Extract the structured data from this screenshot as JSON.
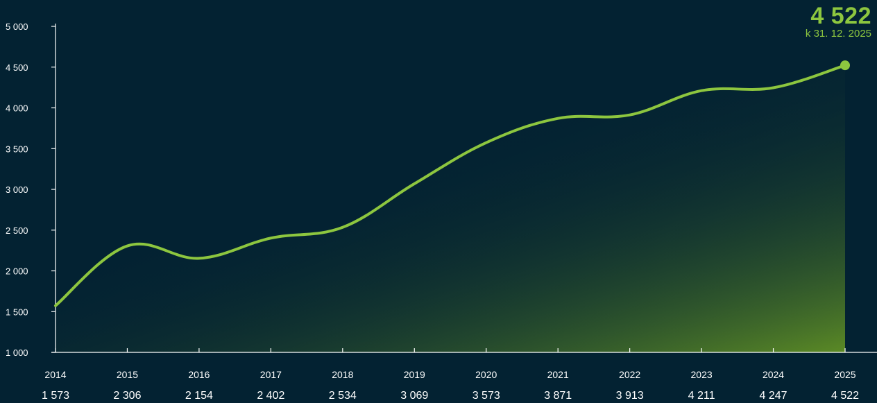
{
  "colors": {
    "background": "#032232",
    "accent": "#8dc63f",
    "axis": "#ffffff",
    "fill_bottom": "#5b8a25"
  },
  "callout": {
    "value": "4 522",
    "date": "k 31. 12. 2025"
  },
  "chart_data": {
    "type": "area",
    "title": "",
    "xlabel": "",
    "ylabel": "",
    "ylim": [
      1000,
      5000
    ],
    "yticks": [
      1000,
      1500,
      2000,
      2500,
      3000,
      3500,
      4000,
      4500,
      5000
    ],
    "ytick_labels": [
      "1 000",
      "1 500",
      "2 000",
      "2 500",
      "3 000",
      "3 500",
      "4 000",
      "4 500",
      "5 000"
    ],
    "categories": [
      "2014",
      "2015",
      "2016",
      "2017",
      "2018",
      "2019",
      "2020",
      "2021",
      "2022",
      "2023",
      "2024",
      "2025"
    ],
    "values": [
      1573,
      2306,
      2154,
      2402,
      2534,
      3069,
      3573,
      3871,
      3913,
      4211,
      4247,
      4522
    ],
    "value_labels": [
      "1 573",
      "2 306",
      "2 154",
      "2 402",
      "2 534",
      "3 069",
      "3 573",
      "3 871",
      "3 913",
      "4 211",
      "4 247",
      "4 522"
    ],
    "grid": false,
    "legend": "none",
    "end_marker": true
  }
}
